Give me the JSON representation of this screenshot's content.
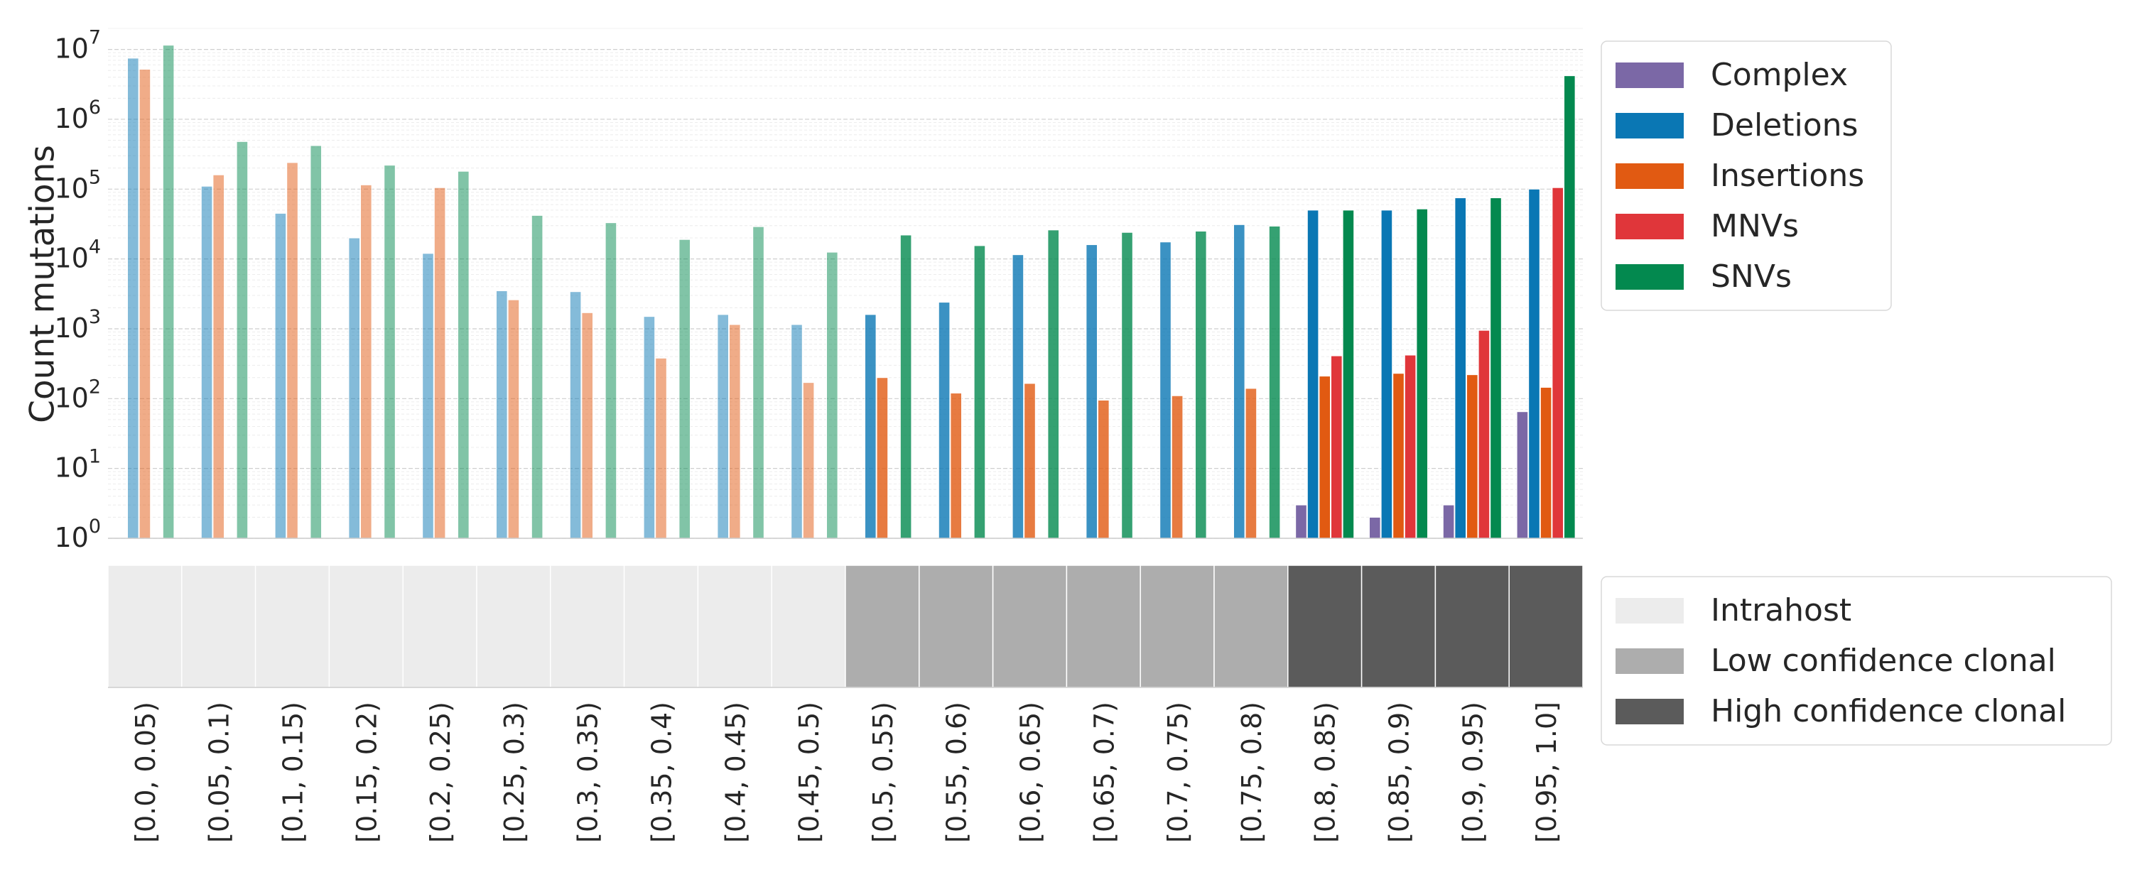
{
  "chart_data": {
    "type": "bar",
    "ylabel": "Count mutations",
    "yscale": "log",
    "ylim": [
      1,
      20000000
    ],
    "yticks": [
      {
        "value": 1,
        "base": "10",
        "exp": "0"
      },
      {
        "value": 10,
        "base": "10",
        "exp": "1"
      },
      {
        "value": 100,
        "base": "10",
        "exp": "2"
      },
      {
        "value": 1000,
        "base": "10",
        "exp": "3"
      },
      {
        "value": 10000,
        "base": "10",
        "exp": "4"
      },
      {
        "value": 100000,
        "base": "10",
        "exp": "5"
      },
      {
        "value": 1000000,
        "base": "10",
        "exp": "6"
      },
      {
        "value": 10000000,
        "base": "10",
        "exp": "7"
      }
    ],
    "categories": [
      "[0.0, 0.05)",
      "[0.05, 0.1)",
      "[0.1, 0.15)",
      "[0.15, 0.2)",
      "[0.2, 0.25)",
      "[0.25, 0.3)",
      "[0.3, 0.35)",
      "[0.35, 0.4)",
      "[0.4, 0.45)",
      "[0.45, 0.5)",
      "[0.5, 0.55)",
      "[0.55, 0.6)",
      "[0.6, 0.65)",
      "[0.65, 0.7)",
      "[0.7, 0.75)",
      "[0.75, 0.8)",
      "[0.8, 0.85)",
      "[0.85, 0.9)",
      "[0.9, 0.95)",
      "[0.95, 1.0]"
    ],
    "series": [
      {
        "name": "Complex",
        "color": "#7b68a6",
        "values": [
          null,
          null,
          null,
          null,
          null,
          null,
          null,
          null,
          null,
          null,
          null,
          null,
          null,
          null,
          null,
          null,
          3,
          2,
          3,
          65
        ]
      },
      {
        "name": "Deletions",
        "color": "#0a77b4",
        "values": [
          7500000,
          110000,
          45000,
          20000,
          12000,
          3500,
          3400,
          1500,
          1600,
          1150,
          1600,
          2400,
          11500,
          16000,
          17500,
          31000,
          50000,
          50000,
          75000,
          100000
        ]
      },
      {
        "name": "Insertions",
        "color": "#e15a12",
        "values": [
          5200000,
          160000,
          240000,
          115000,
          105000,
          2600,
          1700,
          380,
          1150,
          170,
          200,
          120,
          165,
          95,
          110,
          140,
          210,
          230,
          220,
          145
        ]
      },
      {
        "name": "MNVs",
        "color": "#e0363a",
        "values": [
          null,
          null,
          null,
          null,
          null,
          null,
          null,
          null,
          null,
          null,
          null,
          null,
          null,
          null,
          null,
          null,
          410,
          420,
          950,
          105000
        ]
      },
      {
        "name": "SNVs",
        "color": "#03894f",
        "values": [
          11500000,
          480000,
          420000,
          220000,
          180000,
          42000,
          33000,
          19000,
          29000,
          12500,
          22000,
          15500,
          26000,
          24000,
          25000,
          29500,
          50000,
          52000,
          75000,
          4200000
        ]
      }
    ],
    "classes": [
      {
        "name": "Intrahost",
        "color": "#ececec"
      },
      {
        "name": "Low confidence clonal",
        "color": "#adadad"
      },
      {
        "name": "High confidence clonal",
        "color": "#5b5b5b"
      }
    ],
    "category_class": [
      0,
      0,
      0,
      0,
      0,
      0,
      0,
      0,
      0,
      0,
      1,
      1,
      1,
      1,
      1,
      1,
      2,
      2,
      2,
      2
    ],
    "class_alpha": [
      0.5,
      0.8,
      1.0
    ],
    "legend": "right"
  }
}
